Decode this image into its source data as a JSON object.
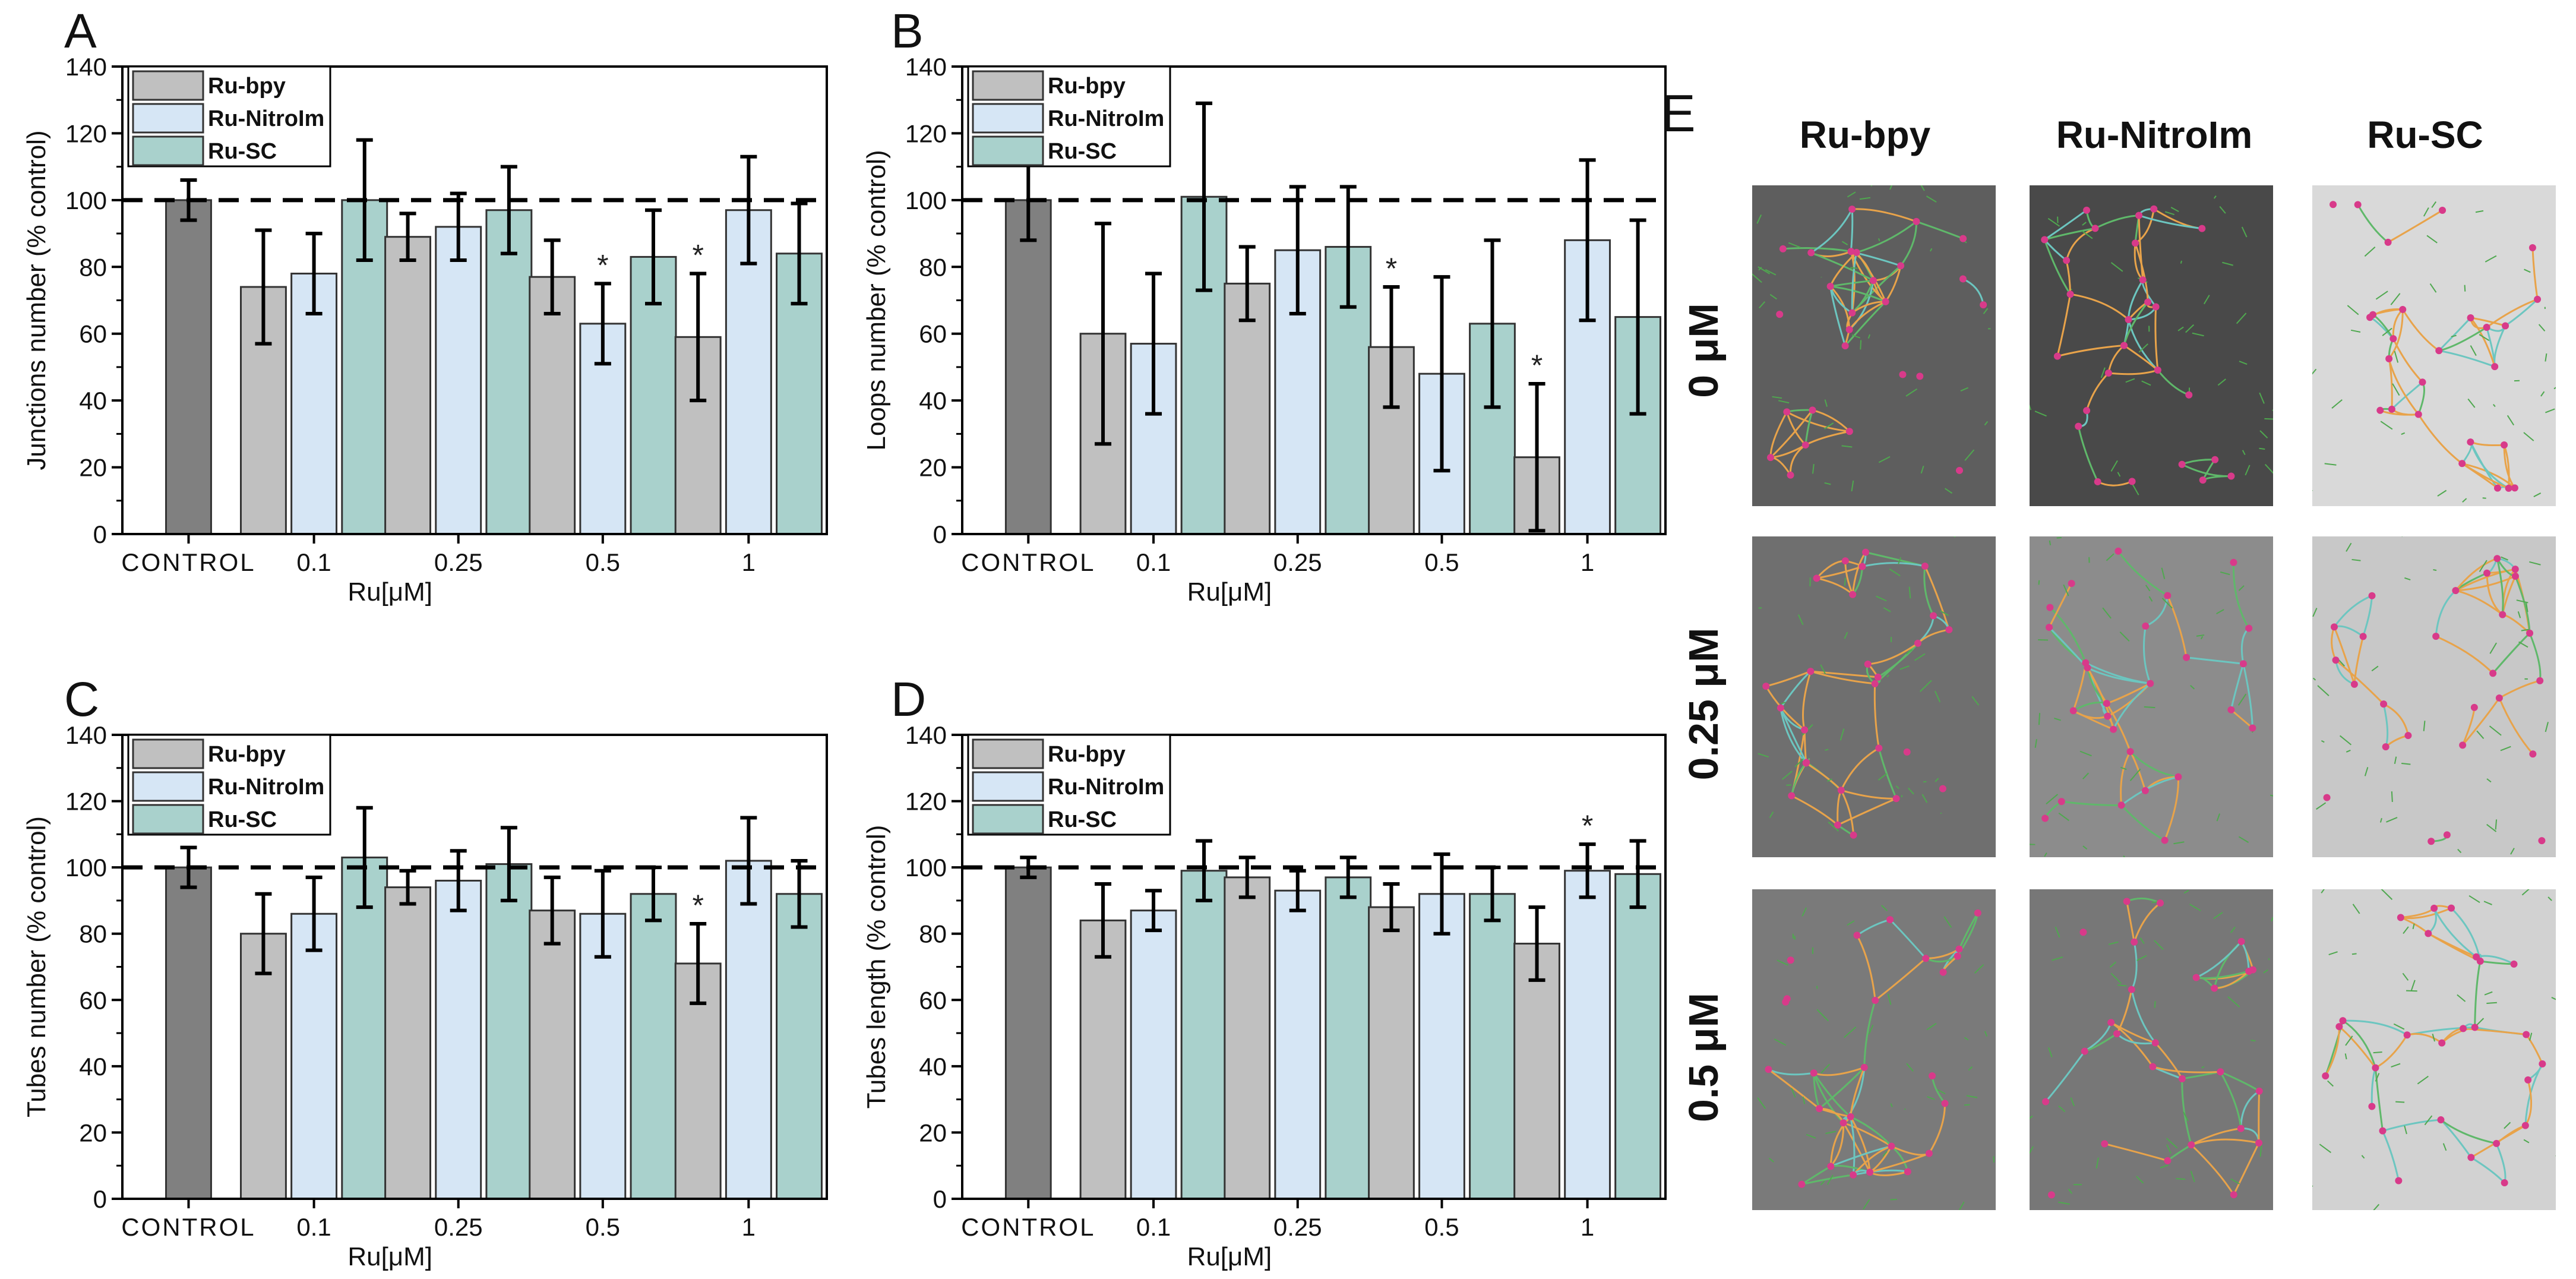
{
  "colors": {
    "ctrl": "#808080",
    "bpy": "#c0c0c0",
    "nitro": "#d6e6f5",
    "sc": "#a9d1cc"
  },
  "chart_data": [
    {
      "panel": "A",
      "type": "bar",
      "xlabel": "Ru[μM]",
      "ylabel": "Junctions number (% control)",
      "ylim": [
        0,
        140
      ],
      "yticks": [
        0,
        20,
        40,
        60,
        80,
        100,
        120,
        140
      ],
      "reference_line": 100,
      "control": {
        "label": "CONTROL",
        "value": 100,
        "err": 6
      },
      "categories": [
        "0.1",
        "0.25",
        "0.5",
        "1"
      ],
      "series": [
        {
          "name": "Ru-bpy",
          "values": [
            74,
            89,
            77,
            59
          ],
          "err": [
            17,
            7,
            11,
            19
          ],
          "sig": [
            "",
            "",
            "",
            "*"
          ]
        },
        {
          "name": "Ru-NitroIm",
          "values": [
            78,
            92,
            63,
            97
          ],
          "err": [
            12,
            10,
            12,
            16
          ],
          "sig": [
            "",
            "",
            "*",
            ""
          ]
        },
        {
          "name": "Ru-SC",
          "values": [
            100,
            97,
            83,
            84
          ],
          "err": [
            18,
            13,
            14,
            15
          ],
          "sig": [
            "",
            "",
            "",
            ""
          ]
        }
      ]
    },
    {
      "panel": "B",
      "type": "bar",
      "xlabel": "Ru[μM]",
      "ylabel": "Loops number (% control)",
      "ylim": [
        0,
        140
      ],
      "yticks": [
        0,
        20,
        40,
        60,
        80,
        100,
        120,
        140
      ],
      "reference_line": 100,
      "control": {
        "label": "CONTROL",
        "value": 100,
        "err": 12
      },
      "categories": [
        "0.1",
        "0.25",
        "0.5",
        "1"
      ],
      "series": [
        {
          "name": "Ru-bpy",
          "values": [
            60,
            75,
            56,
            23
          ],
          "err": [
            33,
            11,
            18,
            22
          ],
          "sig": [
            "",
            "",
            "*",
            "*"
          ]
        },
        {
          "name": "Ru-NitroIm",
          "values": [
            57,
            85,
            48,
            88
          ],
          "err": [
            21,
            19,
            29,
            24
          ],
          "sig": [
            "",
            "",
            "",
            ""
          ]
        },
        {
          "name": "Ru-SC",
          "values": [
            101,
            86,
            63,
            65
          ],
          "err": [
            28,
            18,
            25,
            29
          ],
          "sig": [
            "",
            "",
            "",
            ""
          ]
        }
      ]
    },
    {
      "panel": "C",
      "type": "bar",
      "xlabel": "Ru[μM]",
      "ylabel": "Tubes number (% control)",
      "ylim": [
        0,
        140
      ],
      "yticks": [
        0,
        20,
        40,
        60,
        80,
        100,
        120,
        140
      ],
      "reference_line": 100,
      "control": {
        "label": "CONTROL",
        "value": 100,
        "err": 6
      },
      "categories": [
        "0.1",
        "0.25",
        "0.5",
        "1"
      ],
      "series": [
        {
          "name": "Ru-bpy",
          "values": [
            80,
            94,
            87,
            71
          ],
          "err": [
            12,
            5,
            10,
            12
          ],
          "sig": [
            "",
            "",
            "",
            "*"
          ]
        },
        {
          "name": "Ru-NitroIm",
          "values": [
            86,
            96,
            86,
            102
          ],
          "err": [
            11,
            9,
            13,
            13
          ],
          "sig": [
            "",
            "",
            "",
            ""
          ]
        },
        {
          "name": "Ru-SC",
          "values": [
            103,
            101,
            92,
            92
          ],
          "err": [
            15,
            11,
            8,
            10
          ],
          "sig": [
            "",
            "",
            "",
            ""
          ]
        }
      ]
    },
    {
      "panel": "D",
      "type": "bar",
      "xlabel": "Ru[μM]",
      "ylabel": "Tubes length (% control)",
      "ylim": [
        0,
        140
      ],
      "yticks": [
        0,
        20,
        40,
        60,
        80,
        100,
        120,
        140
      ],
      "reference_line": 100,
      "control": {
        "label": "CONTROL",
        "value": 100,
        "err": 3
      },
      "categories": [
        "0.1",
        "0.25",
        "0.5",
        "1"
      ],
      "series": [
        {
          "name": "Ru-bpy",
          "values": [
            84,
            97,
            88,
            77
          ],
          "err": [
            11,
            6,
            7,
            11
          ],
          "sig": [
            "",
            "",
            "",
            ""
          ]
        },
        {
          "name": "Ru-NitroIm",
          "values": [
            87,
            93,
            92,
            99
          ],
          "err": [
            6,
            6,
            12,
            8
          ],
          "sig": [
            "",
            "",
            "",
            "*"
          ]
        },
        {
          "name": "Ru-SC",
          "values": [
            99,
            97,
            92,
            98
          ],
          "err": [
            9,
            6,
            8,
            10
          ],
          "sig": [
            "",
            "",
            "",
            ""
          ]
        }
      ]
    }
  ],
  "panel_e": {
    "label": "E",
    "columns": [
      "Ru-bpy",
      "Ru-NitroIm",
      "Ru-SC"
    ],
    "rows": [
      "0 μM",
      "0.25 μM",
      "0.5 μM"
    ]
  }
}
